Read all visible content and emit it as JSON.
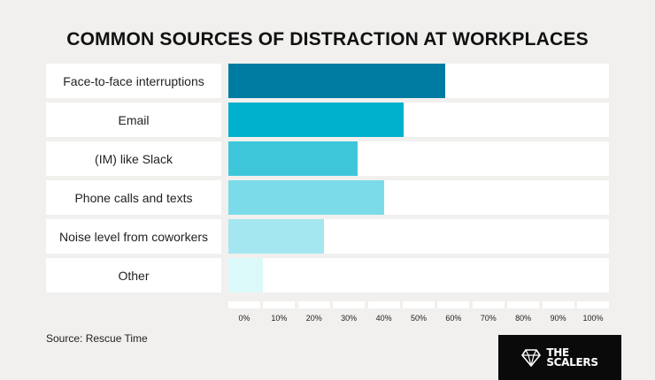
{
  "title": "COMMON SOURCES OF DISTRACTION AT WORKPLACES",
  "source": "Source: Rescue Time",
  "logo": {
    "line1": "THE",
    "line2": "SCALERS"
  },
  "chart_data": {
    "type": "bar",
    "orientation": "horizontal",
    "title": "COMMON SOURCES OF DISTRACTION AT WORKPLACES",
    "categories": [
      "Face-to-face interruptions",
      "Email",
      "(IM) like Slack",
      "Phone calls and texts",
      "Noise level from coworkers",
      "Other"
    ],
    "values": [
      57,
      46,
      34,
      41,
      25,
      9
    ],
    "colors": [
      "#007ba1",
      "#00b1cd",
      "#3ec7db",
      "#7bdbe8",
      "#a4e7f0",
      "#dcf9fa"
    ],
    "xlim": [
      0,
      100
    ],
    "ticks": [
      "0%",
      "10%",
      "20%",
      "30%",
      "40%",
      "50%",
      "60%",
      "70%",
      "80%",
      "90%",
      "100%"
    ],
    "xlabel": "",
    "ylabel": "",
    "grid": false,
    "legend": "none"
  }
}
